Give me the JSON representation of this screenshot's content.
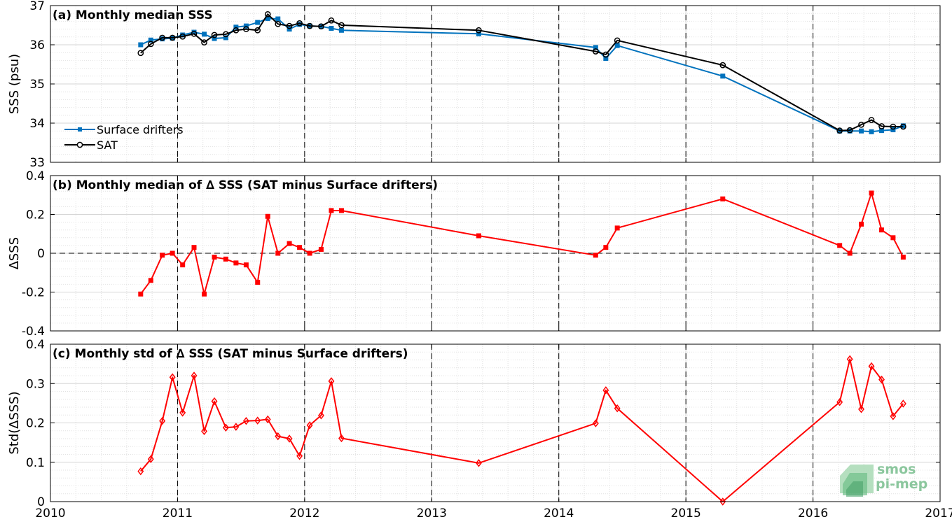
{
  "x_ticks": [
    "2010",
    "2011",
    "2012",
    "2013",
    "2014",
    "2015",
    "2016",
    "2017"
  ],
  "logo": {
    "line1": "smos",
    "line2": "pi-mep"
  },
  "chart_data": [
    {
      "type": "line",
      "title": "(a) Monthly median SSS",
      "ylabel": "SSS (psu)",
      "xlim": [
        2010,
        2017
      ],
      "ylim": [
        33,
        37
      ],
      "yticks": [
        "33",
        "34",
        "35",
        "36",
        "37"
      ],
      "grid": true,
      "legend_placement": "lower-left",
      "series": [
        {
          "name": "Surface drifters",
          "color": "#0072BD",
          "marker": "square",
          "x": [
            2010.71,
            2010.79,
            2010.88,
            2010.96,
            2011.04,
            2011.13,
            2011.21,
            2011.29,
            2011.38,
            2011.46,
            2011.54,
            2011.63,
            2011.71,
            2011.79,
            2011.88,
            2011.96,
            2012.04,
            2012.13,
            2012.21,
            2012.29,
            2013.37,
            2014.29,
            2014.37,
            2014.46,
            2015.29,
            2016.21,
            2016.29,
            2016.38,
            2016.46,
            2016.54,
            2016.63,
            2016.71
          ],
          "y": [
            36.0,
            36.12,
            36.15,
            36.17,
            36.25,
            36.32,
            36.27,
            36.16,
            36.18,
            36.45,
            36.48,
            36.57,
            36.67,
            36.66,
            36.4,
            36.52,
            36.48,
            36.47,
            36.42,
            36.37,
            36.28,
            35.93,
            35.65,
            35.98,
            35.2,
            33.8,
            33.8,
            33.8,
            33.78,
            33.81,
            33.83,
            33.93
          ]
        },
        {
          "name": "SAT",
          "color": "#000000",
          "marker": "circle",
          "x": [
            2010.71,
            2010.79,
            2010.88,
            2010.96,
            2011.04,
            2011.13,
            2011.21,
            2011.29,
            2011.38,
            2011.46,
            2011.54,
            2011.63,
            2011.71,
            2011.79,
            2011.88,
            2011.96,
            2012.04,
            2012.13,
            2012.21,
            2012.29,
            2013.37,
            2014.29,
            2014.37,
            2014.46,
            2015.29,
            2016.21,
            2016.29,
            2016.38,
            2016.46,
            2016.54,
            2016.63,
            2016.71
          ],
          "y": [
            35.79,
            36.02,
            36.18,
            36.18,
            36.21,
            36.28,
            36.06,
            36.25,
            36.27,
            36.37,
            36.4,
            36.37,
            36.78,
            36.53,
            36.48,
            36.55,
            36.48,
            36.47,
            36.62,
            36.5,
            36.37,
            35.83,
            35.75,
            36.11,
            35.48,
            33.81,
            33.82,
            33.96,
            34.08,
            33.92,
            33.91,
            33.91
          ]
        }
      ]
    },
    {
      "type": "line",
      "title": "(b) Monthly median of ∆ SSS (SAT minus Surface drifters)",
      "ylabel": "∆SSS",
      "xlim": [
        2010,
        2017
      ],
      "ylim": [
        -0.4,
        0.4
      ],
      "yticks": [
        "-0.4",
        "-0.2",
        "0",
        "0.2",
        "0.4"
      ],
      "grid": true,
      "series": [
        {
          "color": "#FF0000",
          "marker": "square",
          "x": [
            2010.71,
            2010.79,
            2010.88,
            2010.96,
            2011.04,
            2011.13,
            2011.21,
            2011.29,
            2011.38,
            2011.46,
            2011.54,
            2011.63,
            2011.71,
            2011.79,
            2011.88,
            2011.96,
            2012.04,
            2012.13,
            2012.21,
            2012.29,
            2013.37,
            2014.29,
            2014.37,
            2014.46,
            2015.29,
            2016.21,
            2016.29,
            2016.38,
            2016.46,
            2016.54,
            2016.63,
            2016.71
          ],
          "y": [
            -0.21,
            -0.14,
            -0.01,
            0.0,
            -0.06,
            0.03,
            -0.21,
            -0.02,
            -0.03,
            -0.05,
            -0.06,
            -0.15,
            0.19,
            0.0,
            0.05,
            0.03,
            0.0,
            0.02,
            0.22,
            0.22,
            0.09,
            -0.01,
            0.03,
            0.13,
            0.28,
            0.04,
            0.0,
            0.15,
            0.31,
            0.12,
            0.08,
            -0.02
          ]
        }
      ]
    },
    {
      "type": "line",
      "title": "(c) Monthly std of ∆ SSS (SAT minus Surface drifters)",
      "ylabel": "Std(∆SSS)",
      "xlim": [
        2010,
        2017
      ],
      "ylim": [
        0,
        0.4
      ],
      "yticks": [
        "0",
        "0.1",
        "0.2",
        "0.3",
        "0.4"
      ],
      "grid": true,
      "series": [
        {
          "color": "#FF0000",
          "marker": "diamond",
          "x": [
            2010.71,
            2010.79,
            2010.88,
            2010.96,
            2011.04,
            2011.13,
            2011.21,
            2011.29,
            2011.38,
            2011.46,
            2011.54,
            2011.63,
            2011.71,
            2011.79,
            2011.88,
            2011.96,
            2012.04,
            2012.13,
            2012.21,
            2012.29,
            2013.37,
            2014.29,
            2014.37,
            2014.46,
            2015.29,
            2016.21,
            2016.29,
            2016.38,
            2016.46,
            2016.54,
            2016.63,
            2016.71
          ],
          "y": [
            0.077,
            0.108,
            0.205,
            0.316,
            0.226,
            0.32,
            0.179,
            0.255,
            0.188,
            0.19,
            0.205,
            0.206,
            0.209,
            0.166,
            0.16,
            0.116,
            0.194,
            0.219,
            0.306,
            0.161,
            0.098,
            0.199,
            0.283,
            0.237,
            0.0,
            0.253,
            0.362,
            0.235,
            0.344,
            0.31,
            0.217,
            0.249
          ]
        }
      ]
    }
  ]
}
